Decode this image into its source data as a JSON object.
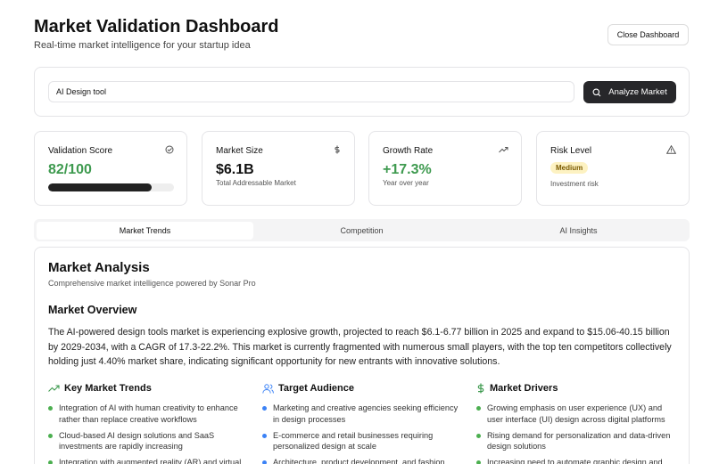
{
  "header": {
    "title": "Market Validation Dashboard",
    "subtitle": "Real-time market intelligence for your startup idea",
    "close_button": "Close Dashboard"
  },
  "search": {
    "query": "AI Design tool",
    "button": "Analyze Market"
  },
  "stats": [
    {
      "label": "Validation Score",
      "value": "82/100"
    },
    {
      "label": "Market Size",
      "value": "$6.1B",
      "note": "Total Addressable Market"
    },
    {
      "label": "Growth Rate",
      "value": "+17.3%",
      "note": "Year over year"
    },
    {
      "label": "Risk Level",
      "badge": "Medium",
      "note": "Investment risk"
    }
  ],
  "tabs": [
    "Market Trends",
    "Competition",
    "AI Insights"
  ],
  "analysis": {
    "title": "Market Analysis",
    "subtitle": "Comprehensive market intelligence powered by Sonar Pro",
    "overview_heading": "Market Overview",
    "overview": "The AI-powered design tools market is experiencing explosive growth, projected to reach $6.1-6.77 billion in 2025 and expand to $15.06-40.15 billion by 2029-2034, with a CAGR of 17.3-22.2%. This market is currently fragmented with numerous small players, with the top ten competitors collectively holding just 4.40% market share, indicating significant opportunity for new entrants with innovative solutions.",
    "columns": [
      {
        "heading": "Key Market Trends",
        "items": [
          "Integration of AI with human creativity to enhance rather than replace creative workflows",
          "Cloud-based AI design solutions and SaaS investments are rapidly increasing",
          "Integration with augmented reality (AR) and virtual"
        ]
      },
      {
        "heading": "Target Audience",
        "items": [
          "Marketing and creative agencies seeking efficiency in design processes",
          "E-commerce and retail businesses requiring personalized design at scale",
          "Architecture, product development, and fashion"
        ]
      },
      {
        "heading": "Market Drivers",
        "items": [
          "Growing emphasis on user experience (UX) and user interface (UI) design across digital platforms",
          "Rising demand for personalization and data-driven design solutions",
          "Increasing need to automate graphic design and"
        ]
      }
    ]
  }
}
